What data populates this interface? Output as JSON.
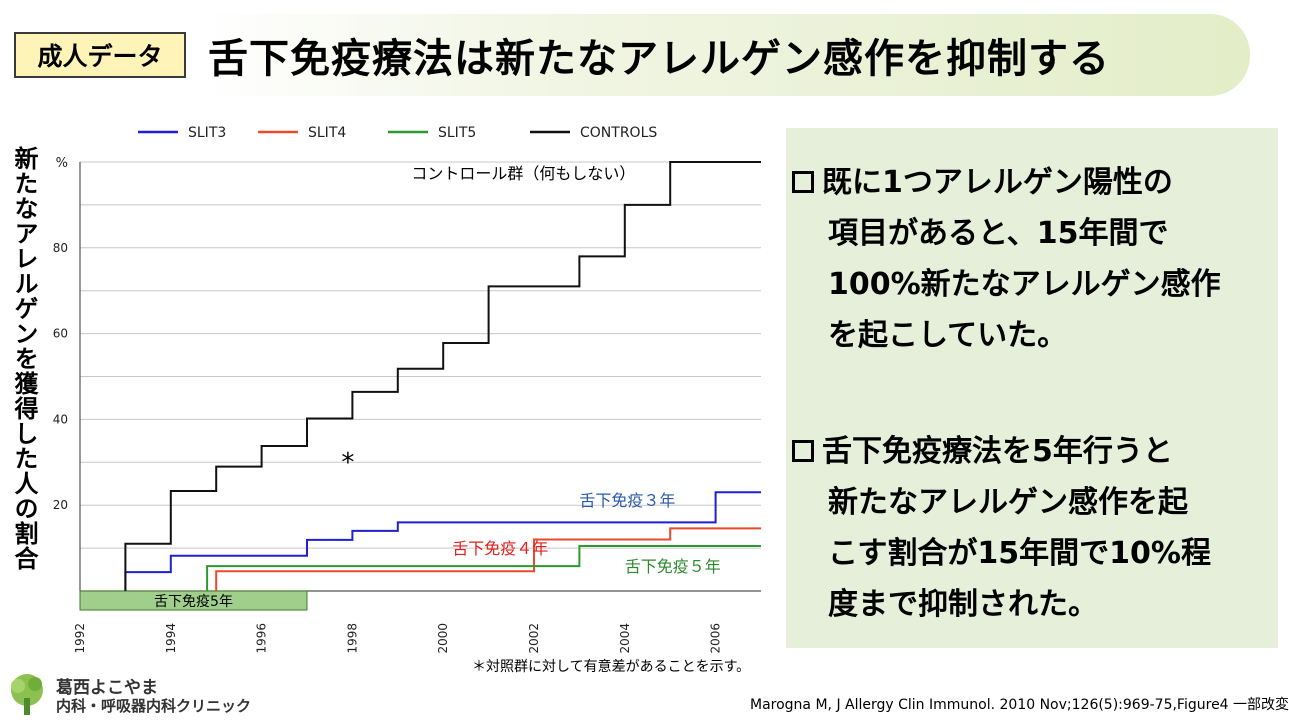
{
  "badge": "成人データ",
  "title": "舌下免疫療法は新たなアレルゲン感作を抑制する",
  "y_axis_label": "新たなアレルゲンを獲得した人の割合",
  "chart_data": {
    "type": "line",
    "step": true,
    "x_ticks": [
      1992,
      1994,
      1996,
      1998,
      2000,
      2002,
      2004,
      2006
    ],
    "y_ticks": [
      20,
      40,
      60,
      80
    ],
    "y_unit_label": "%",
    "xlim": [
      1992,
      2007
    ],
    "ylim": [
      0,
      100
    ],
    "grid": true,
    "legend_position": "top",
    "series": [
      {
        "name": "SLIT3",
        "color": "#1f1fd6",
        "x": [
          1993,
          1993,
          1994,
          1994,
          1997,
          1997,
          1998,
          1998,
          1999,
          1999,
          2006,
          2006,
          2007
        ],
        "y": [
          0,
          4.4,
          4.4,
          8.2,
          8.2,
          11.9,
          11.9,
          14,
          14,
          16,
          16,
          23,
          23
        ]
      },
      {
        "name": "SLIT4",
        "color": "#e84a2a",
        "x": [
          1995,
          1995,
          2002,
          2002,
          2005,
          2005,
          2007
        ],
        "y": [
          0,
          4.6,
          4.6,
          12,
          12,
          14.6,
          14.6
        ]
      },
      {
        "name": "SLIT5",
        "color": "#2e9a2e",
        "x": [
          1994.8,
          1994.8,
          2003,
          2003,
          2007
        ],
        "y": [
          0,
          5.8,
          5.8,
          10.5,
          10.5
        ]
      },
      {
        "name": "CONTROLS",
        "color": "#111111",
        "x": [
          1993,
          1993,
          1994,
          1994,
          1995,
          1995,
          1996,
          1996,
          1997,
          1997,
          1998,
          1998,
          1999,
          1999,
          2000,
          2000,
          2001,
          2001,
          2003,
          2003,
          2004,
          2004,
          2005,
          2005,
          2007
        ],
        "y": [
          0,
          11,
          11,
          23.3,
          23.3,
          29,
          29,
          33.8,
          33.8,
          40.2,
          40.2,
          46.4,
          46.4,
          51.8,
          51.8,
          57.8,
          57.8,
          71,
          71,
          78,
          78,
          90,
          90,
          100,
          100
        ]
      }
    ],
    "annotations": [
      {
        "text": "コントロール群（何もしない）",
        "x": 1999.3,
        "y": 96,
        "color": "#000000"
      },
      {
        "text": "舌下免疫３年",
        "x": 2003,
        "y": 19.8,
        "color": "#2a5aa8"
      },
      {
        "text": "舌下免疫４年",
        "x": 2000.2,
        "y": 8.6,
        "color": "#e0201a"
      },
      {
        "text": "舌下免疫５年",
        "x": 2004,
        "y": 4.4,
        "color": "#2e8a2e"
      },
      {
        "text": "*",
        "x": 1997.9,
        "y": 28,
        "color": "#000000"
      }
    ],
    "period_bar": {
      "label": "舌下免疫5年",
      "start": 1992,
      "end": 1997,
      "color": "#9fcf8a"
    }
  },
  "bullets": [
    {
      "marker": "□",
      "lines": [
        "既に1つアレルゲン陽性の",
        "項目があると、15年間で",
        "100%新たなアレルゲン感作",
        "を起こしていた。"
      ]
    },
    {
      "marker": "□",
      "lines": [
        "舌下免疫療法を5年行うと",
        "新たなアレルゲン感作を起",
        "こす割合が15年間で10%程",
        "度まで抑制された。"
      ]
    }
  ],
  "footnote": "＊対照群に対して有意差があることを示す。",
  "clinic": {
    "name": "葛西よこやま",
    "sub": "内科・呼吸器内科クリニック"
  },
  "citation": "Marogna M, J Allergy Clin Immunol. 2010 Nov;126(5):969-75,Figure4 一部改変",
  "colors": {
    "badge_bg": "#fff4b8",
    "panel_bg": "#e6efd9",
    "title_fade": "#e3edc8"
  }
}
